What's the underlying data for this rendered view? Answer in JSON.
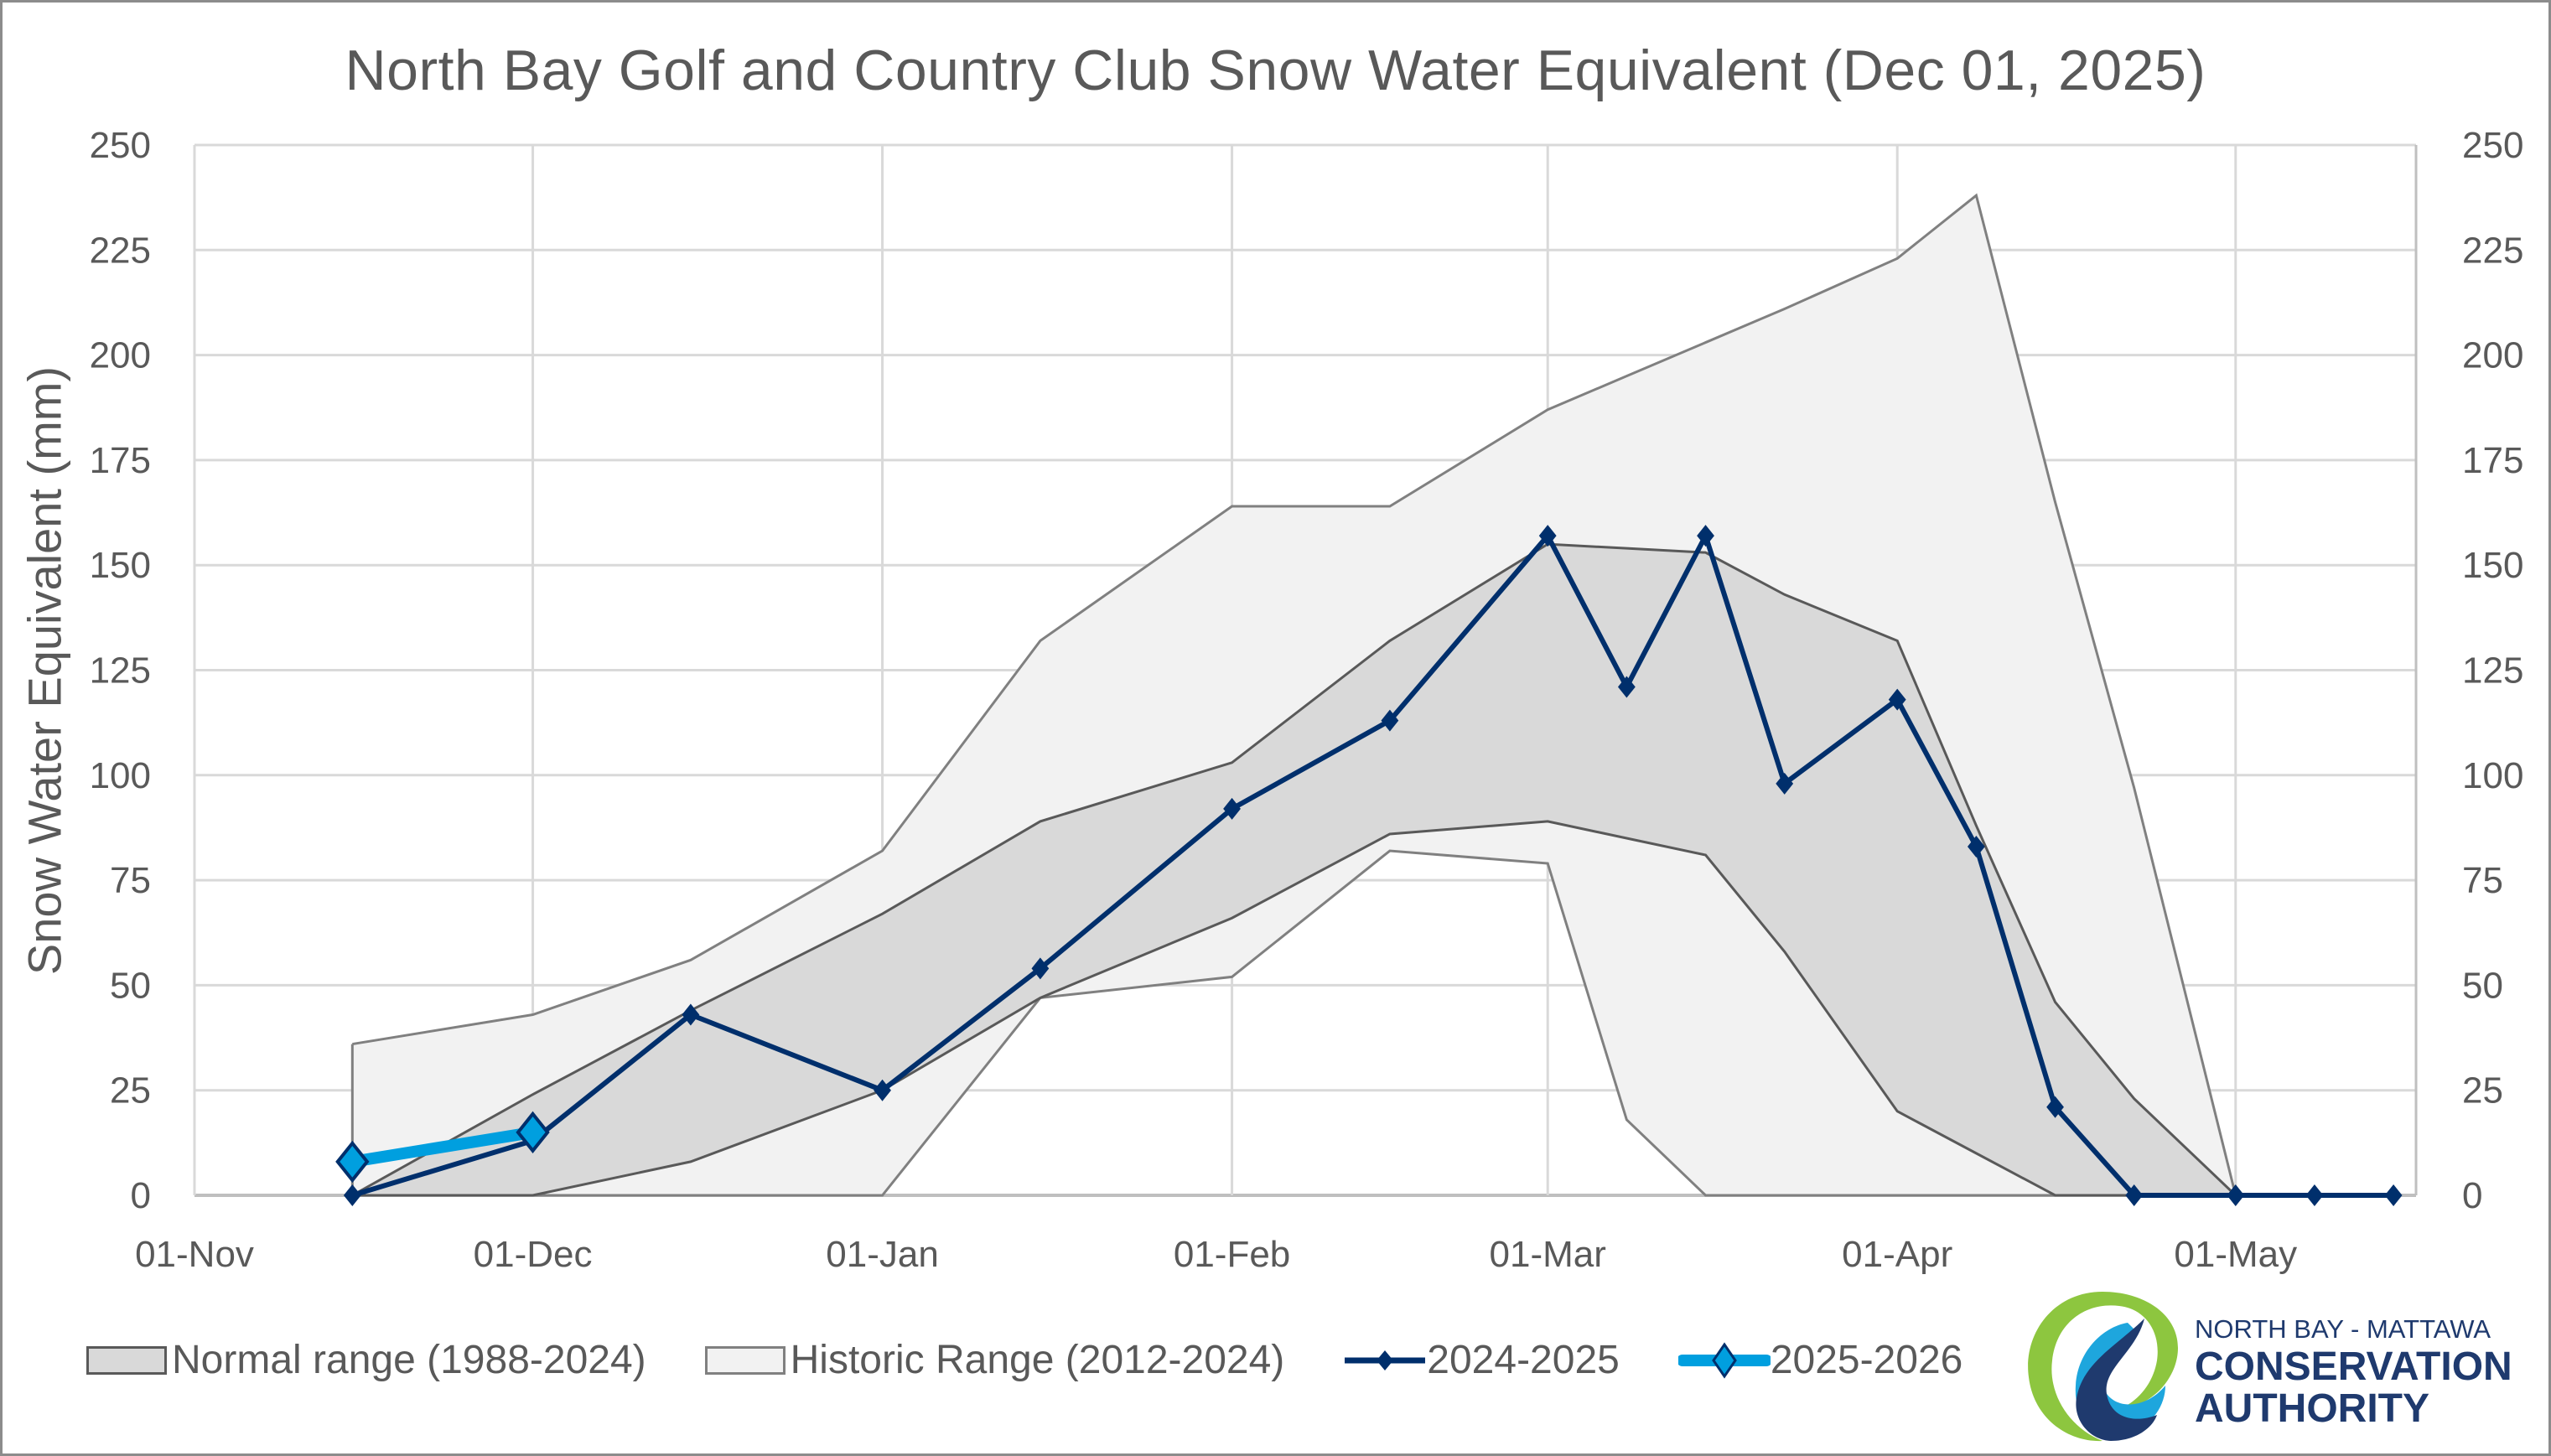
{
  "chart_data": {
    "type": "area",
    "title": "North Bay Golf and Country Club Snow Water Equivalent (Dec 01, 2025)",
    "xlabel": "",
    "ylabel": "Snow Water Equivalent (mm)",
    "ylim": [
      0,
      250
    ],
    "yticks": [
      "0",
      "25",
      "50",
      "75",
      "100",
      "125",
      "150",
      "175",
      "200",
      "225",
      "250"
    ],
    "xlim_days": [
      0,
      197
    ],
    "xticks": [
      {
        "label": "01-Nov",
        "day": 0
      },
      {
        "label": "01-Dec",
        "day": 30
      },
      {
        "label": "01-Jan",
        "day": 61
      },
      {
        "label": "01-Feb",
        "day": 92
      },
      {
        "label": "01-Mar",
        "day": 120
      },
      {
        "label": "01-Apr",
        "day": 151
      },
      {
        "label": "01-May",
        "day": 181
      }
    ],
    "grid": true,
    "secondary_y_axis": true,
    "legend_position": "bottom",
    "x_dates": [
      "15-Nov",
      "01-Dec",
      "15-Dec",
      "01-Jan",
      "15-Jan",
      "01-Feb",
      "15-Feb",
      "01-Mar",
      "08-Mar",
      "15-Mar",
      "22-Mar",
      "01-Apr",
      "08-Apr",
      "15-Apr",
      "22-Apr",
      "01-May",
      "08-May",
      "15-May"
    ],
    "x_days": [
      14,
      30,
      44,
      61,
      75,
      92,
      106,
      120,
      127,
      134,
      141,
      151,
      158,
      165,
      172,
      181,
      188,
      195
    ],
    "series": [
      {
        "name": "Historic Range (2012-2024)",
        "kind": "band",
        "color": "#f2f2f2",
        "stroke": "#808080",
        "upper": [
          36,
          43,
          56,
          82,
          132,
          164,
          164,
          187,
          195,
          203,
          211,
          223,
          238,
          165,
          97,
          0,
          null,
          null
        ],
        "lower": [
          0,
          0,
          0,
          0,
          47,
          52,
          82,
          79,
          18,
          0,
          0,
          0,
          0,
          0,
          0,
          0,
          null,
          null
        ]
      },
      {
        "name": "Normal range (1988-2024)",
        "kind": "band",
        "color": "#d9d9d9",
        "stroke": "#595959",
        "upper": [
          0,
          24,
          44,
          67,
          89,
          103,
          132,
          155,
          154,
          153,
          143,
          132,
          88,
          46,
          23,
          0,
          null,
          null
        ],
        "lower": [
          0,
          0,
          8,
          25,
          47,
          66,
          86,
          89,
          85,
          81,
          58,
          20,
          10,
          0,
          0,
          0,
          null,
          null
        ]
      },
      {
        "name": "2024-2025",
        "kind": "line",
        "color": "#002f6c",
        "values": [
          0,
          13,
          43,
          25,
          54,
          92,
          113,
          157,
          121,
          157,
          98,
          118,
          83,
          21,
          0,
          0,
          0,
          0
        ]
      },
      {
        "name": "2025-2026",
        "kind": "line",
        "color": "#009fdf",
        "marker_edge": "#002f6c",
        "values": [
          8,
          15,
          null,
          null,
          null,
          null,
          null,
          null,
          null,
          null,
          null,
          null,
          null,
          null,
          null,
          null,
          null,
          null
        ]
      }
    ]
  },
  "legend": [
    {
      "label": "Normal range (1988-2024)",
      "icon": "band-swatch-dark"
    },
    {
      "label": "Historic Range (2012-2024)",
      "icon": "band-swatch-light"
    },
    {
      "label": "2024-2025",
      "icon": "line-diamond-navy"
    },
    {
      "label": "2025-2026",
      "icon": "line-diamond-lightblue"
    }
  ],
  "logo": {
    "line1": "NORTH BAY - MATTAWA",
    "line2": "CONSERVATION",
    "line3": "AUTHORITY",
    "colors": {
      "green": "#8dc63f",
      "light_blue": "#1ea6dd",
      "navy": "#1f3a6e"
    }
  }
}
